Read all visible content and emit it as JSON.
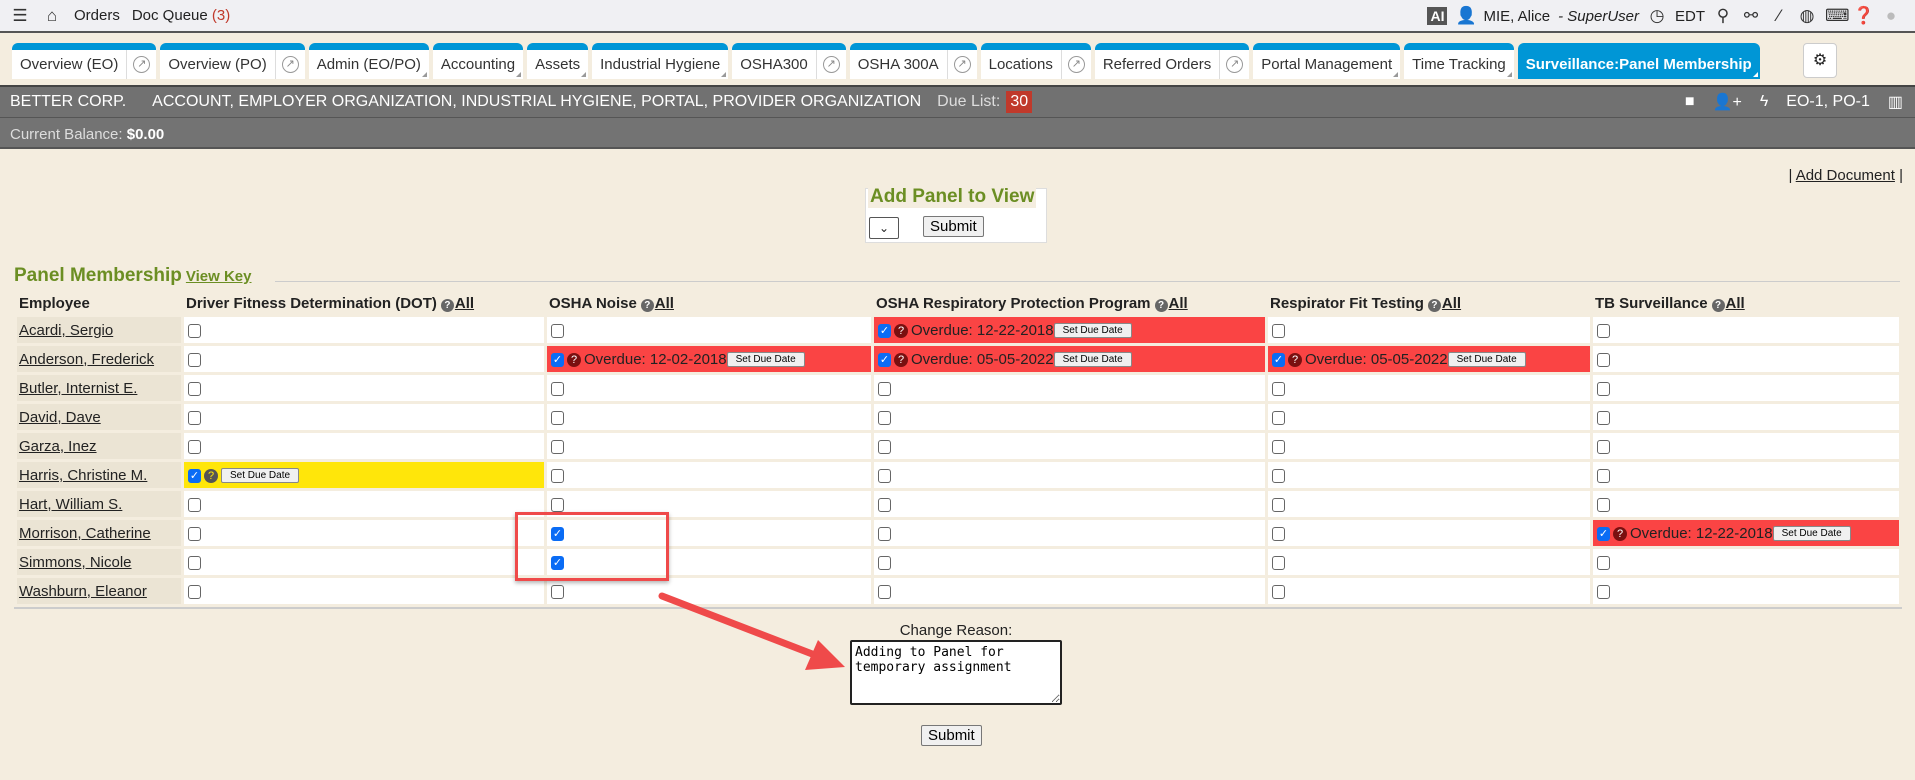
{
  "topbar": {
    "orders": "Orders",
    "doc_queue": "Doc Queue",
    "doc_queue_count": "(3)",
    "ai": "AI",
    "user": "MIE, Alice",
    "role": "- SuperUser",
    "timezone": "EDT"
  },
  "tabs": [
    {
      "label": "Overview (EO)",
      "ext": true
    },
    {
      "label": "Overview (PO)",
      "ext": true
    },
    {
      "label": "Admin (EO/PO)",
      "menu": true
    },
    {
      "label": "Accounting",
      "menu": true
    },
    {
      "label": "Assets",
      "menu": true
    },
    {
      "label": "Industrial Hygiene",
      "menu": true
    },
    {
      "label": "OSHA300",
      "ext": true
    },
    {
      "label": "OSHA 300A",
      "ext": true
    },
    {
      "label": "Locations",
      "ext": true
    },
    {
      "label": "Referred Orders",
      "ext": true
    },
    {
      "label": "Portal Management",
      "menu": true
    },
    {
      "label": "Time Tracking",
      "menu": true
    },
    {
      "label": "Surveillance:Panel Membership",
      "menu": true,
      "active": true
    }
  ],
  "header": {
    "company": "BETTER CORP.",
    "types": "ACCOUNT, EMPLOYER ORGANIZATION, INDUSTRIAL HYGIENE, PORTAL, PROVIDER ORGANIZATION",
    "due_label": "Due List:",
    "due_count": "30",
    "orgs": "EO-1, PO-1",
    "balance_label": "Current Balance:",
    "balance": "$0.00"
  },
  "add_document": "Add Document",
  "add_panel": {
    "title": "Add Panel to View",
    "submit": "Submit"
  },
  "panel": {
    "title": "Panel Membership",
    "view_key": "View Key",
    "all": "All",
    "set_due": "Set Due Date",
    "columns": [
      "Employee",
      "Driver Fitness Determination (DOT)",
      "OSHA Noise",
      "OSHA Respiratory Protection Program",
      "Respirator Fit Testing",
      "TB Surveillance"
    ],
    "rows": [
      {
        "name": "Acardi, Sergio",
        "cells": [
          {},
          {},
          {
            "checked": true,
            "status": "overdue",
            "text": "Overdue: 12-22-2018"
          },
          {},
          {}
        ]
      },
      {
        "name": "Anderson, Frederick",
        "cells": [
          {},
          {
            "checked": true,
            "status": "overdue",
            "text": "Overdue: 12-02-2018"
          },
          {
            "checked": true,
            "status": "overdue",
            "text": "Overdue: 05-05-2022"
          },
          {
            "checked": true,
            "status": "overdue",
            "text": "Overdue: 05-05-2022"
          },
          {}
        ]
      },
      {
        "name": "Butler, Internist E.",
        "cells": [
          {},
          {},
          {},
          {},
          {}
        ]
      },
      {
        "name": "David, Dave",
        "cells": [
          {},
          {},
          {},
          {},
          {}
        ]
      },
      {
        "name": "Garza, Inez",
        "cells": [
          {},
          {},
          {},
          {},
          {}
        ]
      },
      {
        "name": "Harris, Christine M.",
        "cells": [
          {
            "checked": true,
            "status": "pending"
          },
          {},
          {},
          {},
          {}
        ]
      },
      {
        "name": "Hart, William S.",
        "cells": [
          {},
          {},
          {},
          {},
          {}
        ]
      },
      {
        "name": "Morrison, Catherine",
        "cells": [
          {},
          {
            "checked": true
          },
          {},
          {},
          {
            "checked": true,
            "status": "overdue",
            "text": "Overdue: 12-22-2018"
          }
        ]
      },
      {
        "name": "Simmons, Nicole",
        "cells": [
          {},
          {
            "checked": true
          },
          {},
          {},
          {}
        ]
      },
      {
        "name": "Washburn, Eleanor",
        "cells": [
          {},
          {},
          {},
          {},
          {}
        ]
      }
    ]
  },
  "change_reason": {
    "label": "Change Reason:",
    "value": "Adding to Panel for temporary assignment",
    "submit": "Submit"
  },
  "colors": {
    "accent": "#0096d6",
    "overdue": "#fa4444",
    "pending": "#ffe60a",
    "panel_title": "#6b8e23",
    "annotation": "#ef4a4a"
  }
}
